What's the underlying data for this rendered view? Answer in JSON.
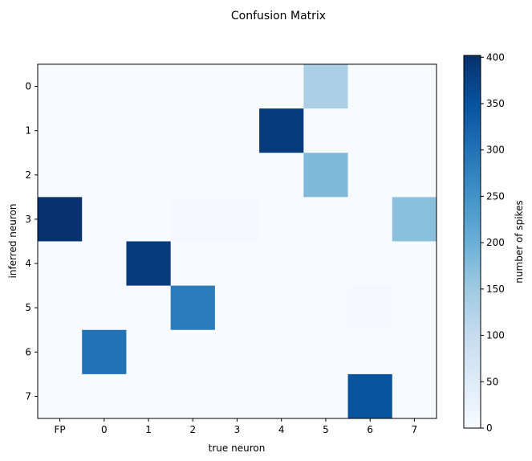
{
  "chart_data": {
    "type": "heatmap",
    "title": "Confusion Matrix",
    "xlabel": "true neuron",
    "ylabel": "inferred neuron",
    "x_categories": [
      "FP",
      "0",
      "1",
      "2",
      "3",
      "4",
      "5",
      "6",
      "7"
    ],
    "y_categories": [
      "0",
      "1",
      "2",
      "3",
      "4",
      "5",
      "6",
      "7"
    ],
    "values": [
      [
        0,
        0,
        0,
        0,
        0,
        0,
        135,
        0,
        0
      ],
      [
        0,
        0,
        0,
        0,
        0,
        385,
        0,
        0,
        0
      ],
      [
        0,
        0,
        0,
        0,
        0,
        0,
        180,
        0,
        0
      ],
      [
        400,
        0,
        0,
        5,
        5,
        0,
        0,
        0,
        170
      ],
      [
        0,
        0,
        385,
        0,
        0,
        0,
        0,
        0,
        0
      ],
      [
        0,
        0,
        0,
        285,
        0,
        0,
        0,
        5,
        0
      ],
      [
        0,
        300,
        0,
        0,
        0,
        0,
        0,
        0,
        0
      ],
      [
        0,
        0,
        0,
        0,
        0,
        0,
        0,
        350,
        0
      ]
    ],
    "colorbar": {
      "label": "number of spikes",
      "min": 0,
      "max": 402,
      "ticks": [
        0,
        50,
        100,
        150,
        200,
        250,
        300,
        350,
        400
      ],
      "colormap": "Blues"
    }
  }
}
